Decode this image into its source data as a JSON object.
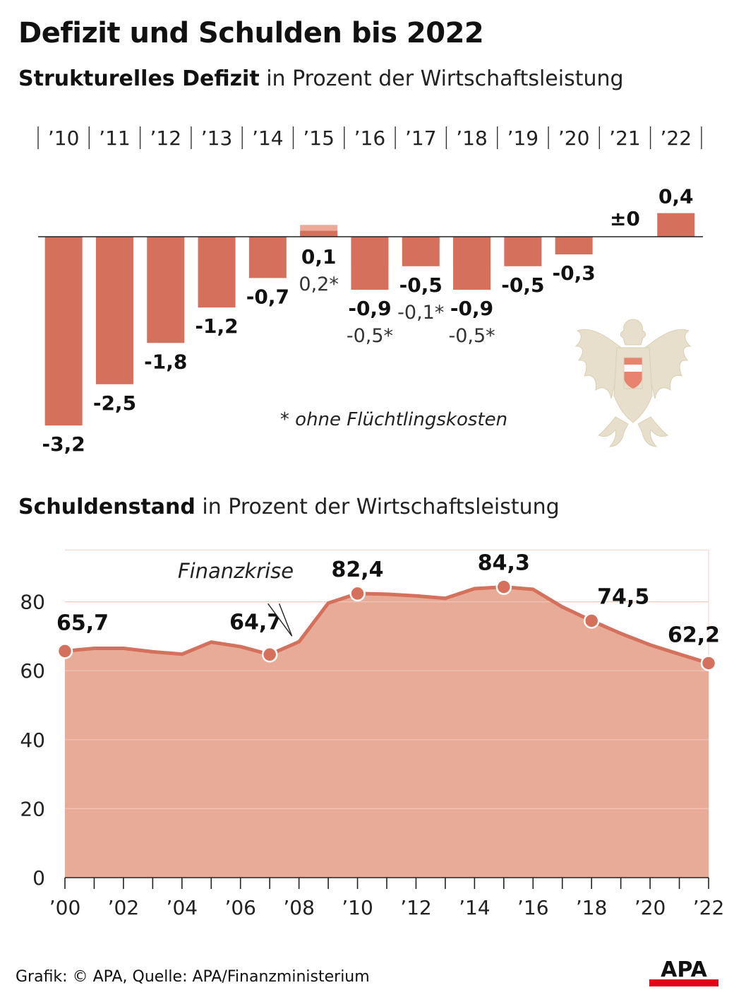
{
  "title": "Defizit und Schulden bis 2022",
  "deficit": {
    "subtitle_bold": "Strukturelles Defizit",
    "subtitle_rest": " in Prozent der Wirtschaftsleistung",
    "footnote": "* ohne Flüchtlingskosten"
  },
  "debt": {
    "subtitle_bold": "Schuldenstand",
    "subtitle_rest": " in Prozent der Wirtschaftsleistung",
    "annotation": "Finanzkrise"
  },
  "footer": {
    "source": "Grafik: © APA, Quelle: APA/Finanzministerium",
    "logo_text": "APA"
  },
  "colors": {
    "bar": "#d4705b",
    "bar_light": "#eeaa98",
    "area_fill": "#e8ab98",
    "line": "#d4705b",
    "grid": "#f5d8cf",
    "logo_red": "#e2001a"
  },
  "chart_data": [
    {
      "type": "bar",
      "categories": [
        "’10",
        "’11",
        "’12",
        "’13",
        "’14",
        "’15",
        "’16",
        "’17",
        "’18",
        "’19",
        "’20",
        "’21",
        "’22"
      ],
      "series": [
        {
          "values": [
            -3.2,
            -2.5,
            -1.8,
            -1.2,
            -0.7,
            0.1,
            -0.9,
            -0.5,
            -0.9,
            -0.5,
            -0.3,
            0,
            0.4
          ],
          "labels": [
            "-3,2",
            "-2,5",
            "-1,8",
            "-1,2",
            "-0,7",
            "0,1",
            "-0,9",
            "-0,5",
            "-0,9",
            "-0,5",
            "-0,3",
            "±0",
            "0,4"
          ]
        },
        {
          "values": [
            null,
            null,
            null,
            null,
            null,
            0.2,
            -0.5,
            -0.1,
            -0.5,
            null,
            null,
            null,
            null
          ],
          "labels": [
            "",
            "",
            "",
            "",
            "",
            "0,2*",
            "-0,5*",
            "-0,1*",
            "-0,5*",
            "",
            "",
            "",
            ""
          ]
        }
      ]
    },
    {
      "type": "area",
      "x": [
        2000,
        2001,
        2002,
        2003,
        2004,
        2005,
        2006,
        2007,
        2008,
        2009,
        2010,
        2011,
        2012,
        2013,
        2014,
        2015,
        2016,
        2017,
        2018,
        2019,
        2020,
        2021,
        2022
      ],
      "values": [
        65.7,
        66.5,
        66.5,
        65.5,
        64.8,
        68.3,
        67.0,
        64.7,
        68.4,
        79.6,
        82.4,
        82.2,
        81.7,
        81.0,
        83.8,
        84.3,
        83.6,
        78.5,
        74.5,
        70.8,
        67.5,
        64.8,
        62.2
      ],
      "highlight_labels": [
        {
          "x": 2000,
          "label": "65,7"
        },
        {
          "x": 2007,
          "label": "64,7"
        },
        {
          "x": 2010,
          "label": "82,4"
        },
        {
          "x": 2015,
          "label": "84,3"
        },
        {
          "x": 2018,
          "label": "74,5"
        },
        {
          "x": 2022,
          "label": "62,2"
        }
      ],
      "x_tick_labels": [
        "’00",
        "’02",
        "’04",
        "’06",
        "’08",
        "’10",
        "’12",
        "’14",
        "’16",
        "’18",
        "’20",
        "’22"
      ],
      "y_ticks": [
        0,
        20,
        40,
        60,
        80
      ],
      "ylim": [
        0,
        95
      ]
    }
  ]
}
